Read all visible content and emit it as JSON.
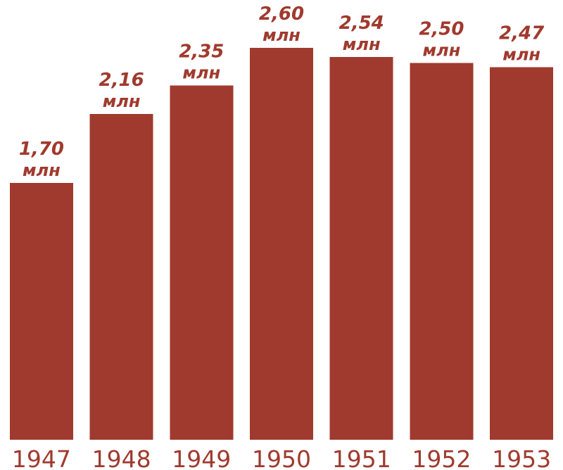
{
  "chart_data": {
    "type": "bar",
    "categories": [
      "1947",
      "1948",
      "1949",
      "1950",
      "1951",
      "1952",
      "1953"
    ],
    "values": [
      1.7,
      2.16,
      2.35,
      2.6,
      2.54,
      2.5,
      2.47
    ],
    "data_labels": [
      "1,70",
      "2,16",
      "2,35",
      "2,60",
      "2,54",
      "2,50",
      "2,47"
    ],
    "unit": "млн",
    "title": "",
    "xlabel": "",
    "ylabel": "",
    "ylim": [
      0,
      3
    ],
    "grid": false,
    "legend": "none",
    "colors": {
      "bar": "#a03a2e",
      "data_label": "#a03a2e",
      "tick_label": "#a03a2e"
    }
  }
}
